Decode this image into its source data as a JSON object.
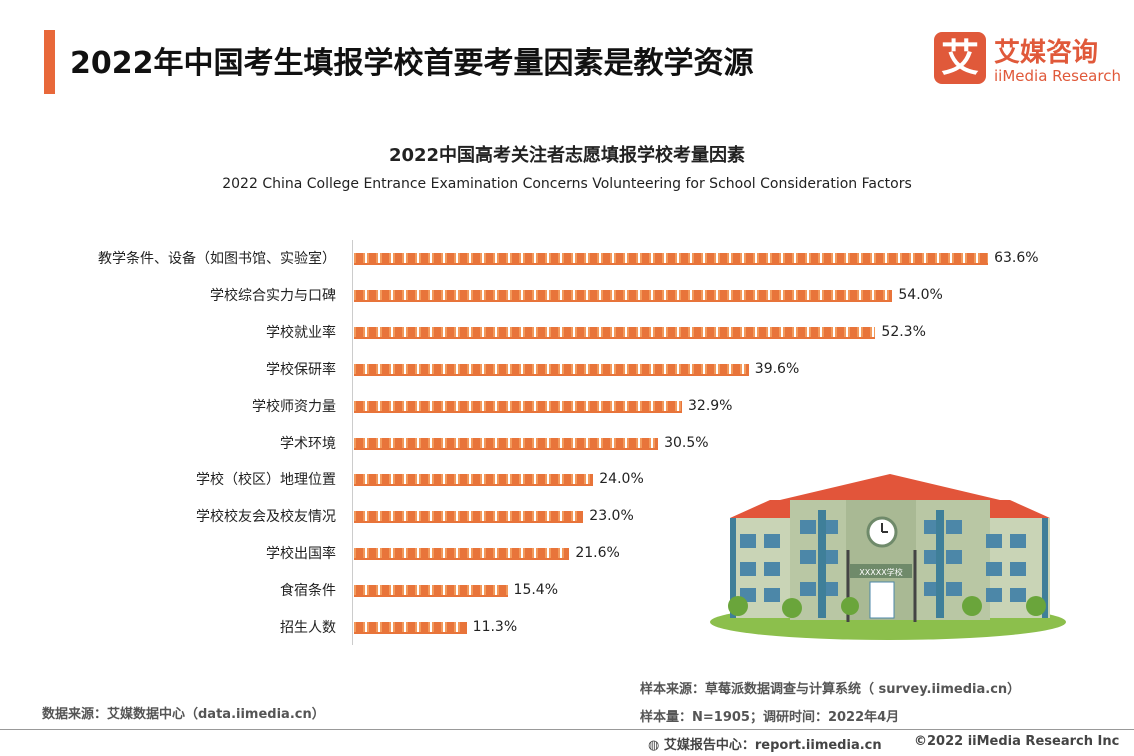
{
  "header": {
    "title": "2022年中国考生填报学校首要考量因素是教学资源",
    "logo_cn": "艾媒咨询",
    "logo_en": "iiMedia Research",
    "logo_mark": "艾"
  },
  "chart_data": {
    "type": "bar",
    "orientation": "horizontal",
    "title": "2022中国高考关注者志愿填报学校考量因素",
    "subtitle": "2022 China College Entrance Examination Concerns Volunteering for School Consideration Factors",
    "categories": [
      "教学条件、设备（如图书馆、实验室）",
      "学校综合实力与口碑",
      "学校就业率",
      "学校保研率",
      "学校师资力量",
      "学术环境",
      "学校（校区）地理位置",
      "学校校友会及校友情况",
      "学校出国率",
      "食宿条件",
      "招生人数"
    ],
    "values": [
      63.6,
      54.0,
      52.3,
      39.6,
      32.9,
      30.5,
      24.0,
      23.0,
      21.6,
      15.4,
      11.3
    ],
    "labels": [
      "63.6%",
      "54.0%",
      "52.3%",
      "39.6%",
      "32.9%",
      "30.5%",
      "24.0%",
      "23.0%",
      "21.6%",
      "15.4%",
      "11.3%"
    ],
    "unit": "%",
    "bar_color": "#e8743a",
    "grid": false
  },
  "illustration": {
    "sign": "XXXXX学校"
  },
  "footer": {
    "source": "数据来源：艾媒数据中心（data.iimedia.cn）",
    "sample_source": "样本来源：草莓派数据调查与计算系统（ survey.iimedia.cn）",
    "sample_size": "样本量：N=1905；调研时间：2022年4月",
    "report": "艾媒报告中心：report.iimedia.cn",
    "copyright": "©2022  iiMedia Research  Inc"
  }
}
